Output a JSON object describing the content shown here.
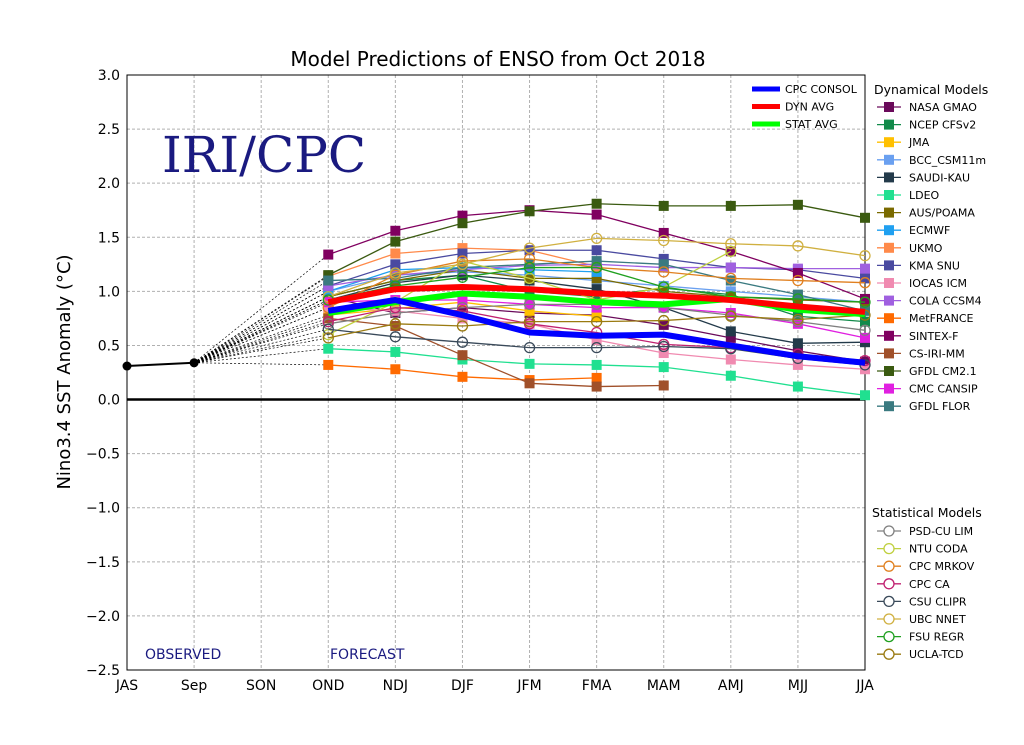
{
  "chart_data": {
    "type": "line",
    "title": "Model Predictions of ENSO from Oct 2018",
    "ylabel": "Nino3.4 SST Anomaly (°C)",
    "xlabel": "",
    "watermark": "IRI/CPC",
    "observed_label": "OBSERVED",
    "forecast_label": "FORECAST",
    "categories": [
      "JAS",
      "Sep",
      "SON",
      "OND",
      "NDJ",
      "DJF",
      "JFM",
      "FMA",
      "MAM",
      "AMJ",
      "MJJ",
      "JJA"
    ],
    "ylim": [
      -2.5,
      3.0
    ],
    "yticks": [
      "3.0",
      "2.5",
      "2.0",
      "1.5",
      "1.0",
      "0.5",
      "0.0",
      "−0.5",
      "−1.0",
      "−1.5",
      "−2.0",
      "−2.5"
    ],
    "grid": true,
    "observed": {
      "color": "#000000",
      "values": [
        0.31,
        0.34
      ]
    },
    "averages": [
      {
        "name": "CPC CONSOL",
        "color": "#0000ff",
        "values": [
          0.82,
          0.92,
          0.78,
          0.62,
          0.59,
          0.6,
          0.5,
          0.4,
          0.34
        ]
      },
      {
        "name": "DYN AVG",
        "color": "#ff0000",
        "values": [
          0.9,
          1.02,
          1.04,
          1.02,
          0.98,
          0.96,
          0.92,
          0.86,
          0.81
        ]
      },
      {
        "name": "STAT AVG",
        "color": "#00ff00",
        "values": [
          0.8,
          0.9,
          0.98,
          0.95,
          0.9,
          0.88,
          0.93,
          0.83,
          0.79
        ]
      }
    ],
    "dynamical_title": "Dynamical Models",
    "statistical_title": "Statistical Models",
    "dynamical": [
      {
        "name": "NASA GMAO",
        "color": "#6a0a5a",
        "values": [
          0.95,
          0.8,
          0.85,
          0.8,
          0.78,
          0.69,
          0.57,
          0.45,
          0.35
        ]
      },
      {
        "name": "NCEP CFSv2",
        "color": "#128a4a",
        "values": [
          0.95,
          1.1,
          1.15,
          1.0,
          0.95,
          1.03,
          0.97,
          0.77,
          0.72
        ]
      },
      {
        "name": "JMA",
        "color": "#ffc000",
        "values": [
          0.78,
          0.84,
          0.9,
          0.82,
          0.77
        ]
      },
      {
        "name": "BCC_CSM11m",
        "color": "#6aa0f0",
        "values": [
          1.0,
          1.15,
          1.18,
          1.15,
          1.1,
          1.05,
          1.0,
          0.95,
          0.9
        ]
      },
      {
        "name": "SAUDI-KAU",
        "color": "#233a4a",
        "values": [
          0.92,
          1.08,
          1.15,
          1.1,
          1.02,
          0.85,
          0.63,
          0.52,
          0.53
        ]
      },
      {
        "name": "LDEO",
        "color": "#20e090",
        "values": [
          0.47,
          0.44,
          0.37,
          0.33,
          0.32,
          0.3,
          0.22,
          0.12,
          0.04
        ]
      },
      {
        "name": "AUS/POAMA",
        "color": "#7a6a00",
        "values": [
          0.95,
          1.1,
          1.2,
          1.12,
          1.12,
          1.0,
          0.95,
          0.92,
          0.9
        ]
      },
      {
        "name": "ECMWF",
        "color": "#20a0f0",
        "values": [
          1.0,
          1.2,
          1.22,
          1.2,
          1.18
        ]
      },
      {
        "name": "UKMO",
        "color": "#ff8a4a",
        "values": [
          1.14,
          1.35,
          1.4,
          1.38,
          1.23
        ]
      },
      {
        "name": "KMA SNU",
        "color": "#4a4aa0",
        "values": [
          1.05,
          1.25,
          1.35,
          1.38,
          1.38,
          1.3,
          1.22,
          1.2,
          1.12
        ]
      },
      {
        "name": "IOCAS ICM",
        "color": "#f08ab0",
        "values": [
          0.85,
          0.82,
          0.75,
          0.7,
          0.55,
          0.43,
          0.37,
          0.32,
          0.28
        ]
      },
      {
        "name": "COLA CCSM4",
        "color": "#a060e0",
        "values": [
          1.05,
          1.15,
          1.2,
          1.24,
          1.25,
          1.22,
          1.22,
          1.21,
          1.21
        ]
      },
      {
        "name": "MetFRANCE",
        "color": "#ff6a00",
        "values": [
          0.32,
          0.28,
          0.21,
          0.18,
          0.2
        ]
      },
      {
        "name": "SINTEX-F",
        "color": "#800060",
        "values": [
          1.34,
          1.56,
          1.7,
          1.75,
          1.71,
          1.54,
          1.37,
          1.17,
          0.93
        ]
      },
      {
        "name": "CS-IRI-MM",
        "color": "#a0502a",
        "values": [
          0.75,
          0.68,
          0.41,
          0.15,
          0.12,
          0.13
        ]
      },
      {
        "name": "GFDL CM2.1",
        "color": "#3a5a10",
        "values": [
          1.15,
          1.46,
          1.63,
          1.74,
          1.81,
          1.79,
          1.79,
          1.8,
          1.68
        ]
      },
      {
        "name": "CMC CANSIP",
        "color": "#e020e0",
        "values": [
          0.9,
          0.92,
          0.92,
          0.88,
          0.85,
          0.85,
          0.8,
          0.7,
          0.57
        ]
      },
      {
        "name": "GFDL FLOR",
        "color": "#3a7a80",
        "values": [
          1.1,
          1.12,
          1.22,
          1.25,
          1.28,
          1.25,
          1.1,
          0.97,
          0.82
        ]
      }
    ],
    "statistical": [
      {
        "name": "PSD-CU LIM",
        "color": "#808080",
        "values": [
          0.7,
          0.8,
          0.85,
          0.88,
          0.88,
          0.85,
          0.78,
          0.72,
          0.64
        ]
      },
      {
        "name": "NTU CODA",
        "color": "#c0d040",
        "values": [
          0.6,
          0.9,
          1.28,
          1.12,
          0.92,
          1.04,
          1.37
        ]
      },
      {
        "name": "CPC MRKOV",
        "color": "#e08020",
        "values": [
          0.85,
          1.15,
          1.28,
          1.3,
          1.22,
          1.18,
          1.12,
          1.1,
          1.08
        ]
      },
      {
        "name": "CPC CA",
        "color": "#c02070",
        "values": [
          0.72,
          0.85,
          0.82,
          0.7,
          0.62,
          0.51,
          0.48,
          0.42,
          0.36
        ]
      },
      {
        "name": "CSU CLIPR",
        "color": "#3a4a5a",
        "values": [
          0.65,
          0.58,
          0.53,
          0.48,
          0.48,
          0.49,
          0.47,
          0.38,
          0.32
        ]
      },
      {
        "name": "UBC NNET",
        "color": "#d0b040",
        "values": [
          0.95,
          1.17,
          1.25,
          1.4,
          1.49,
          1.47,
          1.44,
          1.42,
          1.33
        ]
      },
      {
        "name": "FSU REGR",
        "color": "#20a020",
        "values": [
          0.92,
          1.05,
          1.13,
          1.22,
          1.22,
          1.04,
          0.95,
          0.93,
          0.9
        ]
      },
      {
        "name": "UCLA-TCD",
        "color": "#9a7a10",
        "values": [
          0.57,
          0.7,
          0.68,
          0.72,
          0.72,
          0.73,
          0.77,
          0.74,
          0.78
        ]
      }
    ]
  }
}
